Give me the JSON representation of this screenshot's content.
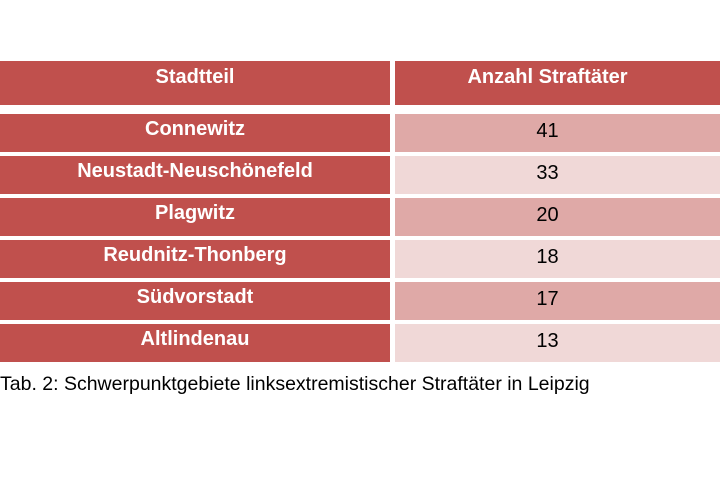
{
  "table": {
    "headers": {
      "district": "Stadtteil",
      "count": "Anzahl Straftäter"
    },
    "rows": [
      {
        "district": "Connewitz",
        "count": "41"
      },
      {
        "district": "Neustadt-Neuschönefeld",
        "count": "33"
      },
      {
        "district": "Plagwitz",
        "count": "20"
      },
      {
        "district": "Reudnitz-Thonberg",
        "count": "18"
      },
      {
        "district": "Südvorstadt",
        "count": "17"
      },
      {
        "district": "Altlindenau",
        "count": "13"
      }
    ]
  },
  "caption": "Tab. 2: Schwerpunktgebiete linksextremistischer Straftäter in Leipzig",
  "colors": {
    "header_red": "#c0504d",
    "row_dark_pink": "#dfa9a7",
    "row_light_pink": "#f0d8d7"
  }
}
